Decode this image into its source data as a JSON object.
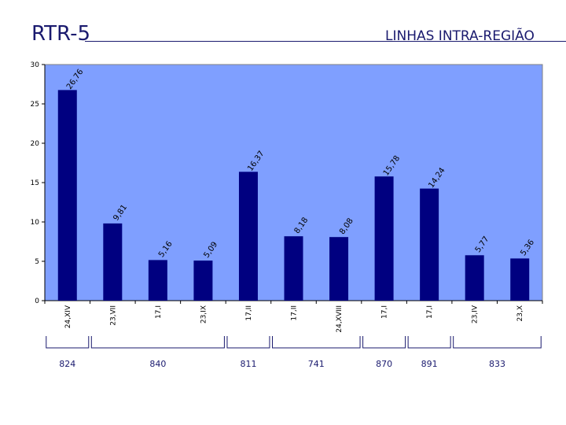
{
  "header": {
    "title": "RTR-5",
    "subtitle": "LINHAS INTRA-REGIÃO"
  },
  "chart_data": {
    "type": "bar",
    "categories": [
      "24,XIV",
      "23,VII",
      "17,I",
      "23,IX",
      "17,II",
      "17,II",
      "24,XVIII",
      "17,I",
      "17,I",
      "23,IV",
      "23,X"
    ],
    "values": [
      26.76,
      9.81,
      5.16,
      5.09,
      16.37,
      8.18,
      8.08,
      15.78,
      14.24,
      5.77,
      5.36
    ],
    "value_labels": [
      "26,76",
      "9,81",
      "5,16",
      "5,09",
      "16,37",
      "8,18",
      "8,08",
      "15,78",
      "14,24",
      "5,77",
      "5,36"
    ],
    "ylim": [
      0,
      30
    ],
    "yticks": [
      0,
      5,
      10,
      15,
      20,
      25,
      30
    ],
    "grid": false,
    "colors": {
      "bar": "#000080",
      "plot_bg": "#7f9fff"
    },
    "groups": [
      {
        "label": "824",
        "start": 0,
        "end": 0
      },
      {
        "label": "840",
        "start": 1,
        "end": 3
      },
      {
        "label": "811",
        "start": 4,
        "end": 4
      },
      {
        "label": "741",
        "start": 5,
        "end": 6
      },
      {
        "label": "870",
        "start": 7,
        "end": 7
      },
      {
        "label": "891",
        "start": 8,
        "end": 8
      },
      {
        "label": "833",
        "start": 9,
        "end": 10
      }
    ]
  }
}
